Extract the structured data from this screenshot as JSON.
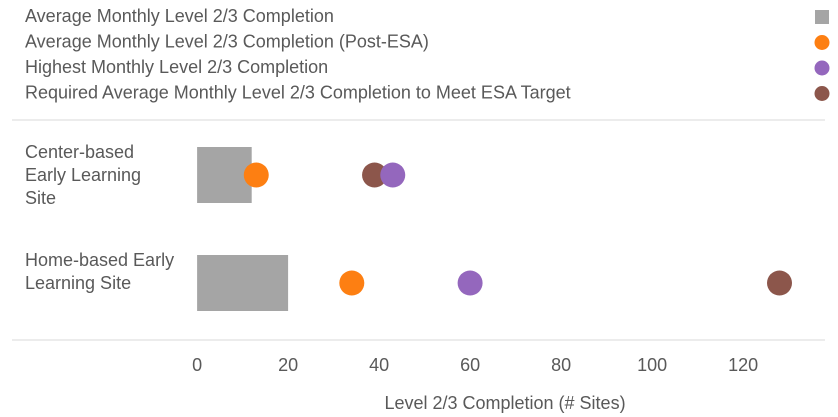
{
  "chart_data": {
    "type": "bar",
    "x_label": "Level 2/3 Completion (# Sites)",
    "categories": [
      "Center-based Early Learning Site",
      "Home-based Early Learning Site"
    ],
    "series": [
      {
        "name": "Average Monthly Level 2/3 Completion",
        "color": "#a5a5a5",
        "marker": "square",
        "values": [
          12,
          20
        ]
      },
      {
        "name": "Average Monthly Level 2/3 Completion (Post-ESA)",
        "color": "#fd7f12",
        "marker": "circle",
        "values": [
          13,
          34
        ]
      },
      {
        "name": "Highest Monthly Level 2/3 Completion",
        "color": "#9467bd",
        "marker": "circle",
        "values": [
          43,
          60
        ]
      },
      {
        "name": "Required Average Monthly Level 2/3 Completion to Meet ESA Target",
        "color": "#8c564b",
        "marker": "circle",
        "values": [
          39,
          128
        ]
      }
    ],
    "xlim": [
      -2,
      138
    ],
    "xticks": [
      0,
      20,
      40,
      60,
      80,
      100,
      120
    ]
  }
}
